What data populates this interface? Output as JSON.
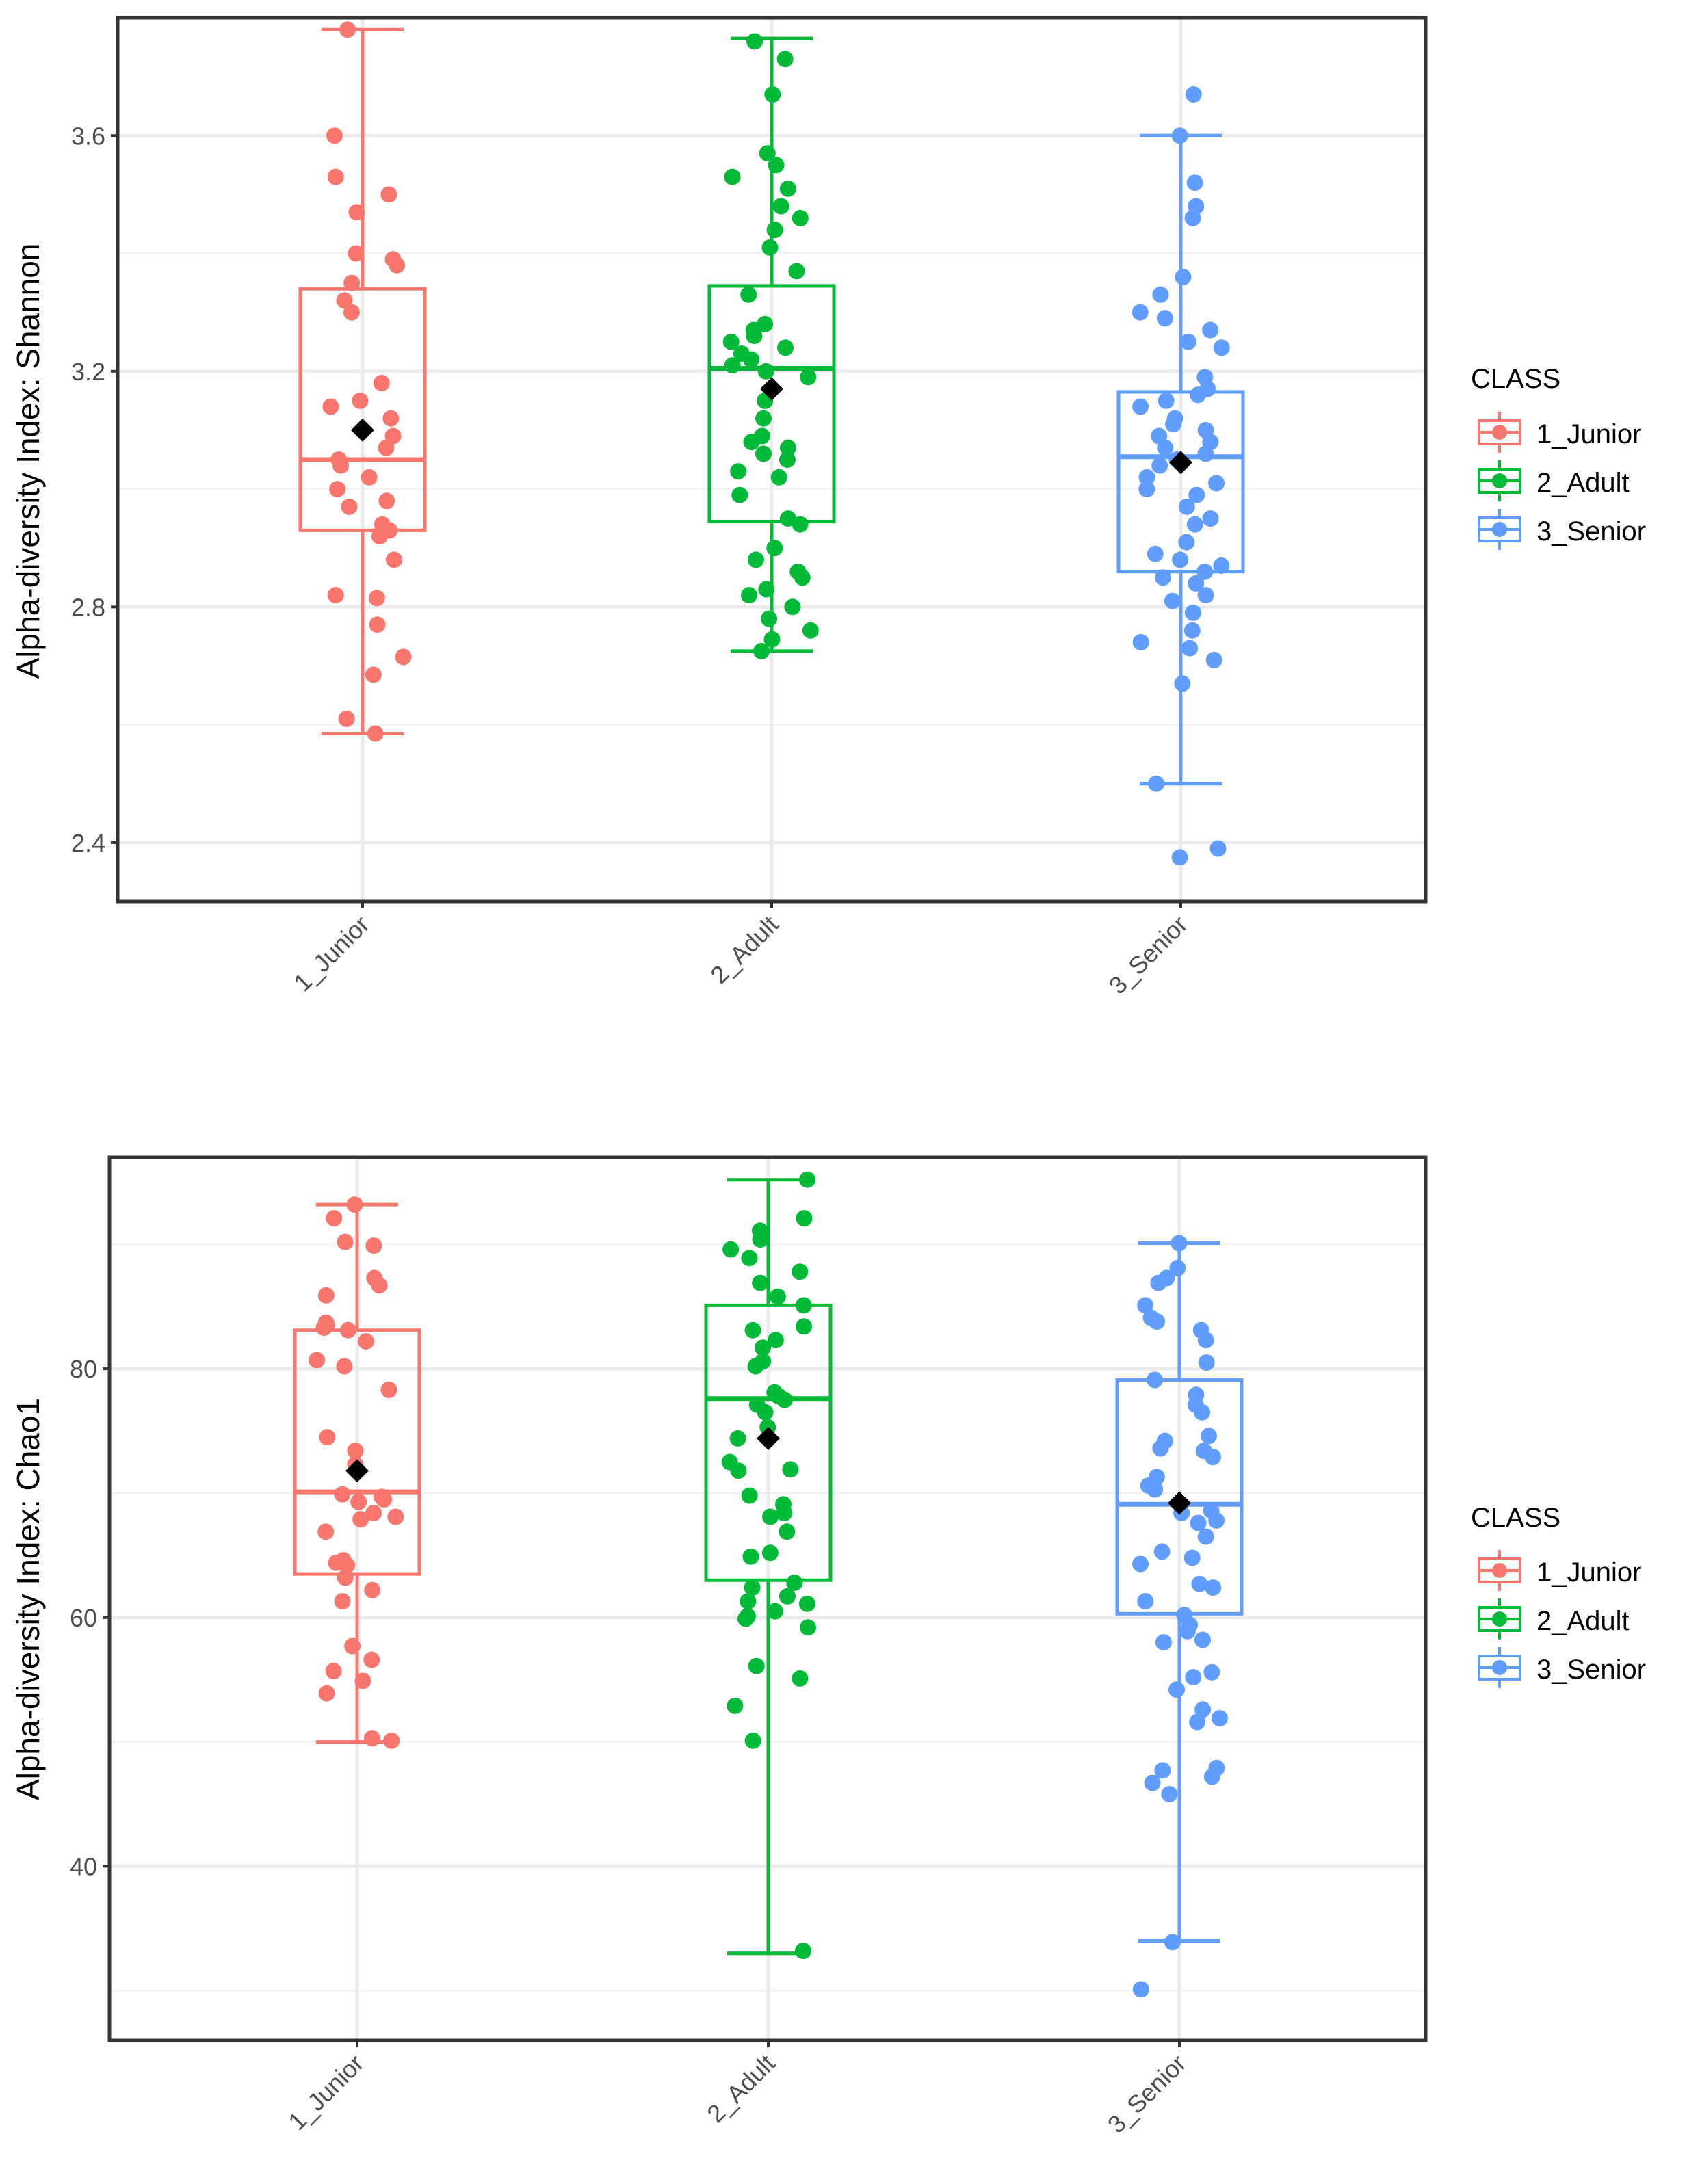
{
  "colors": {
    "groups": [
      "#F8766D",
      "#00BA38",
      "#619CFF"
    ],
    "mean_marker": "#000000",
    "grid_major": "#EBEBEB",
    "panel_border": "#333333"
  },
  "chart_data": [
    {
      "type": "boxplot",
      "ylabel": "Alpha-diversity Index: Shannon",
      "ylim": [
        2.3,
        3.8
      ],
      "yticks": [
        2.4,
        2.8,
        3.2,
        3.6
      ],
      "ytick_labels": [
        "2.4",
        "2.8",
        "3.2",
        "3.6"
      ],
      "grid": true,
      "categories": [
        "1_Junior",
        "2_Adult",
        "3_Senior"
      ],
      "legend": {
        "title": "CLASS",
        "entries": [
          "1_Junior",
          "2_Adult",
          "3_Senior"
        ],
        "position": "right"
      },
      "boxes": [
        {
          "name": "1_Junior",
          "whisker_low": 2.585,
          "q1": 2.93,
          "median": 3.05,
          "q3": 3.34,
          "whisker_high": 3.78,
          "mean": 3.1
        },
        {
          "name": "2_Adult",
          "whisker_low": 2.725,
          "q1": 2.945,
          "median": 3.205,
          "q3": 3.345,
          "whisker_high": 3.765,
          "mean": 3.17
        },
        {
          "name": "3_Senior",
          "whisker_low": 2.5,
          "q1": 2.86,
          "median": 3.055,
          "q3": 3.165,
          "whisker_high": 3.6,
          "mean": 3.045
        }
      ],
      "points": [
        [
          2.585,
          2.61,
          2.685,
          2.715,
          2.77,
          2.815,
          2.82,
          2.88,
          2.92,
          2.93,
          2.94,
          2.97,
          2.98,
          3.0,
          3.02,
          3.04,
          3.05,
          3.07,
          3.09,
          3.12,
          3.14,
          3.15,
          3.18,
          3.3,
          3.32,
          3.35,
          3.38,
          3.39,
          3.4,
          3.47,
          3.5,
          3.53,
          3.6,
          3.78
        ],
        [
          2.725,
          2.745,
          2.76,
          2.78,
          2.8,
          2.82,
          2.83,
          2.85,
          2.86,
          2.88,
          2.9,
          2.94,
          2.95,
          2.99,
          3.02,
          3.03,
          3.05,
          3.06,
          3.07,
          3.08,
          3.09,
          3.12,
          3.15,
          3.19,
          3.2,
          3.21,
          3.22,
          3.23,
          3.24,
          3.25,
          3.26,
          3.27,
          3.28,
          3.33,
          3.37,
          3.41,
          3.44,
          3.46,
          3.48,
          3.51,
          3.53,
          3.55,
          3.57,
          3.67,
          3.73,
          3.76
        ],
        [
          2.375,
          2.39,
          2.5,
          2.67,
          2.71,
          2.73,
          2.74,
          2.76,
          2.79,
          2.81,
          2.82,
          2.84,
          2.85,
          2.86,
          2.87,
          2.88,
          2.89,
          2.91,
          2.94,
          2.95,
          2.97,
          2.99,
          3.0,
          3.01,
          3.02,
          3.04,
          3.05,
          3.06,
          3.07,
          3.08,
          3.09,
          3.1,
          3.11,
          3.12,
          3.14,
          3.15,
          3.16,
          3.17,
          3.19,
          3.24,
          3.25,
          3.27,
          3.29,
          3.3,
          3.33,
          3.36,
          3.46,
          3.48,
          3.52,
          3.6,
          3.67
        ]
      ]
    },
    {
      "type": "boxplot",
      "ylabel": "Alpha-diversity Index: Chao1",
      "ylim": [
        26,
        97
      ],
      "yticks": [
        40,
        60,
        80
      ],
      "ytick_labels": [
        "40",
        "60",
        "80"
      ],
      "grid": true,
      "categories": [
        "1_Junior",
        "2_Adult",
        "3_Senior"
      ],
      "legend": {
        "title": "CLASS",
        "entries": [
          "1_Junior",
          "2_Adult",
          "3_Senior"
        ],
        "position": "right"
      },
      "boxes": [
        {
          "name": "1_Junior",
          "whisker_low": 50,
          "q1": 63.5,
          "median": 70.1,
          "q3": 83.1,
          "whisker_high": 93.2,
          "mean": 71.8
        },
        {
          "name": "2_Adult",
          "whisker_low": 33,
          "q1": 63,
          "median": 77.6,
          "q3": 85.1,
          "whisker_high": 95.2,
          "mean": 74.4
        },
        {
          "name": "3_Senior",
          "whisker_low": 34,
          "q1": 60.3,
          "median": 69.1,
          "q3": 79.1,
          "whisker_high": 90.1,
          "mean": 69.2
        }
      ],
      "points": [
        [
          50.1,
          50.3,
          53.9,
          54.9,
          55.7,
          56.6,
          57.7,
          61.3,
          62.2,
          63.2,
          64.2,
          64.4,
          64.6,
          66.9,
          67.9,
          68.1,
          68.4,
          69.3,
          69.5,
          69.7,
          69.9,
          72.3,
          73.4,
          74.5,
          78.3,
          80.2,
          80.7,
          82.2,
          83.1,
          83.3,
          83.5,
          83.7,
          85.9,
          86.7,
          87.3,
          89.9,
          90.2,
          92.1,
          93.2
        ],
        [
          33.2,
          50.1,
          52.9,
          55.1,
          56.1,
          59.2,
          59.9,
          60.1,
          60.5,
          61.1,
          61.3,
          61.7,
          62.4,
          62.8,
          64.9,
          65.2,
          66.9,
          68.1,
          68.4,
          69.1,
          69.8,
          71.8,
          71.9,
          72.5,
          74.4,
          75.3,
          76.5,
          77.1,
          77.5,
          77.8,
          78.1,
          80.2,
          80.6,
          81.7,
          82.3,
          83.1,
          83.4,
          85.1,
          85.8,
          86.9,
          87.8,
          88.9,
          89.6,
          90.4,
          91.1,
          92.1,
          95.2
        ],
        [
          30.1,
          33.9,
          45.8,
          46.7,
          47.2,
          47.7,
          47.9,
          51.6,
          51.9,
          52.6,
          54.2,
          55.2,
          55.6,
          58.0,
          58.2,
          58.9,
          59.4,
          60.2,
          61.3,
          62.4,
          62.7,
          64.3,
          64.8,
          65.3,
          66.5,
          67.6,
          67.8,
          68.4,
          68.6,
          70.3,
          70.6,
          71.3,
          72.9,
          73.4,
          73.6,
          74.2,
          74.6,
          76.5,
          77.1,
          77.9,
          79.1,
          80.5,
          82.3,
          83.1,
          83.8,
          84.1,
          85.1,
          86.9,
          87.3,
          88.1,
          90.1
        ]
      ]
    }
  ]
}
